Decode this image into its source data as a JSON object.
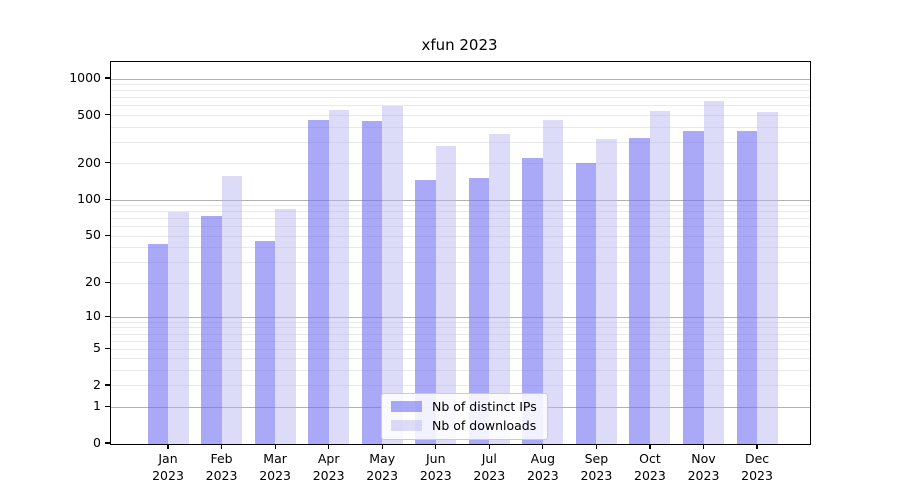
{
  "chart_data": {
    "type": "bar",
    "title": "xfun 2023",
    "xlabel": "",
    "ylabel": "",
    "scale": "log1p",
    "ylim": [
      0,
      1380
    ],
    "y_ticks": [
      0,
      1,
      2,
      5,
      10,
      20,
      50,
      100,
      200,
      500,
      1000
    ],
    "grid": {
      "major_color": "#b2b2b2",
      "minor_color": "#e9e9e9"
    },
    "categories": [
      "Jan",
      "Feb",
      "Mar",
      "Apr",
      "May",
      "Jun",
      "Jul",
      "Aug",
      "Sep",
      "Oct",
      "Nov",
      "Dec"
    ],
    "year": "2023",
    "legend_position": "lower-center-inside",
    "series": [
      {
        "name": "Nb of distinct IPs",
        "key": "distinct-ips",
        "color": "rgba(112,112,243,0.60)",
        "values": [
          43,
          74,
          46,
          462,
          448,
          148,
          153,
          225,
          205,
          327,
          372,
          372
        ]
      },
      {
        "name": "Nb of downloads",
        "key": "downloads",
        "color": "rgba(177,177,239,0.45)",
        "values": [
          79,
          160,
          84,
          558,
          604,
          278,
          352,
          464,
          318,
          547,
          662,
          540
        ]
      }
    ]
  }
}
